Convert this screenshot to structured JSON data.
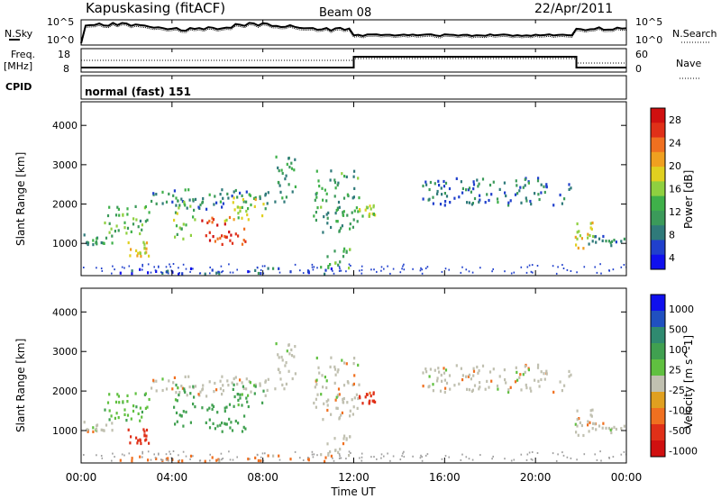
{
  "header": {
    "station": "Kapuskasing (fitACF)",
    "beam": "Beam 08",
    "date": "22/Apr/2011"
  },
  "top_panels": {
    "nsky_label": "N.Sky",
    "nsky_ticks": [
      "10^5",
      "10^0"
    ],
    "nsearch_label": "N.Search",
    "nsearch_ticks": [
      "10^5",
      "10^0"
    ],
    "freq_label": "Freq.",
    "freq_unit": "[MHz]",
    "freq_ticks": [
      "18",
      "8"
    ],
    "nave_label": "Nave",
    "nave_ticks": [
      "60",
      "0"
    ],
    "cpid_label": "CPID",
    "cpid_text": "normal (fast) 151"
  },
  "chart_data": [
    {
      "type": "heatmap",
      "panel": "power",
      "ylabel": "Slant Range [km]",
      "yticks": [
        "1000",
        "2000",
        "3000",
        "4000"
      ],
      "ylim": [
        180,
        4600
      ],
      "xlim": [
        0,
        24
      ],
      "colorbar": {
        "label": "Power [dB]",
        "ticks": [
          "28",
          "24",
          "20",
          "16",
          "12",
          "8",
          "4"
        ],
        "colors": [
          "#1010ee",
          "#2040cc",
          "#2f7a7a",
          "#3b9a5a",
          "#3fb04a",
          "#8fd040",
          "#e0d020",
          "#f0a020",
          "#f07020",
          "#e03018",
          "#d01010"
        ]
      },
      "regions": [
        {
          "t": [
            0.1,
            1.5
          ],
          "r": [
            1000,
            1250
          ],
          "v": 9
        },
        {
          "t": [
            1.0,
            3.0
          ],
          "r": [
            1200,
            2000
          ],
          "v": 12
        },
        {
          "t": [
            2.0,
            3.0
          ],
          "r": [
            700,
            1100
          ],
          "v": 18
        },
        {
          "t": [
            3.0,
            8.6
          ],
          "r": [
            1900,
            2400
          ],
          "v": 8
        },
        {
          "t": [
            4.0,
            5.0
          ],
          "r": [
            1100,
            2200
          ],
          "v": 13
        },
        {
          "t": [
            5.2,
            7.2
          ],
          "r": [
            1000,
            1700
          ],
          "v": 26
        },
        {
          "t": [
            6.2,
            8.0
          ],
          "r": [
            1600,
            2200
          ],
          "v": 16
        },
        {
          "t": [
            8.5,
            9.4
          ],
          "r": [
            2000,
            3300
          ],
          "v": 9
        },
        {
          "t": [
            10.2,
            12.2
          ],
          "r": [
            1300,
            2900
          ],
          "v": 10
        },
        {
          "t": [
            10.5,
            12.0
          ],
          "r": [
            400,
            900
          ],
          "v": 12
        },
        {
          "t": [
            12.2,
            13.0
          ],
          "r": [
            1700,
            2000
          ],
          "v": 15
        },
        {
          "t": [
            15.0,
            21.6
          ],
          "r": [
            2000,
            2700
          ],
          "v": 7
        },
        {
          "t": [
            21.7,
            22.5
          ],
          "r": [
            900,
            1600
          ],
          "v": 18
        },
        {
          "t": [
            22.3,
            24.0
          ],
          "r": [
            950,
            1250
          ],
          "v": 7
        },
        {
          "t": [
            1.0,
            11.0
          ],
          "r": [
            250,
            400
          ],
          "v": 5
        }
      ]
    },
    {
      "type": "heatmap",
      "panel": "velocity",
      "ylabel": "Slant Range [km]",
      "yticks": [
        "1000",
        "2000",
        "3000",
        "4000"
      ],
      "ylim": [
        180,
        4600
      ],
      "xlim": [
        0,
        24
      ],
      "xlabel": "Time UT",
      "xticks": [
        "00:00",
        "04:00",
        "08:00",
        "12:00",
        "16:00",
        "20:00",
        "00:00"
      ],
      "colorbar": {
        "label": "Velocity [m s^-1]",
        "ticks": [
          "1000",
          "500",
          "100",
          "25",
          "-25",
          "-100",
          "-500",
          "-1000"
        ],
        "colors": [
          "#1010ee",
          "#2050c0",
          "#2f8a70",
          "#40a050",
          "#60c040",
          "#c0c0b0",
          "#e0a020",
          "#f07020",
          "#e03018",
          "#d01010"
        ]
      },
      "regions": [
        {
          "t": [
            0.1,
            1.5
          ],
          "r": [
            1000,
            1250
          ],
          "v": 0
        },
        {
          "t": [
            1.0,
            3.0
          ],
          "r": [
            1200,
            2000
          ],
          "v": 80
        },
        {
          "t": [
            2.0,
            3.0
          ],
          "r": [
            700,
            1100
          ],
          "v": -200
        },
        {
          "t": [
            3.0,
            8.6
          ],
          "r": [
            1900,
            2400
          ],
          "v": 0
        },
        {
          "t": [
            4.0,
            5.0
          ],
          "r": [
            1100,
            2200
          ],
          "v": 150
        },
        {
          "t": [
            5.2,
            7.2
          ],
          "r": [
            1000,
            1700
          ],
          "v": 200
        },
        {
          "t": [
            6.2,
            8.0
          ],
          "r": [
            1600,
            2200
          ],
          "v": 120
        },
        {
          "t": [
            8.5,
            9.4
          ],
          "r": [
            2000,
            3300
          ],
          "v": 0
        },
        {
          "t": [
            10.2,
            12.2
          ],
          "r": [
            1300,
            2900
          ],
          "v": 0
        },
        {
          "t": [
            10.5,
            12.0
          ],
          "r": [
            400,
            900
          ],
          "v": 0
        },
        {
          "t": [
            12.2,
            13.0
          ],
          "r": [
            1700,
            2000
          ],
          "v": -150
        },
        {
          "t": [
            15.0,
            21.6
          ],
          "r": [
            2000,
            2700
          ],
          "v": 0
        },
        {
          "t": [
            21.7,
            22.5
          ],
          "r": [
            900,
            1600
          ],
          "v": 0
        },
        {
          "t": [
            22.3,
            24.0
          ],
          "r": [
            950,
            1250
          ],
          "v": 0
        },
        {
          "t": [
            1.0,
            11.0
          ],
          "r": [
            250,
            400
          ],
          "v": -50
        }
      ]
    }
  ]
}
